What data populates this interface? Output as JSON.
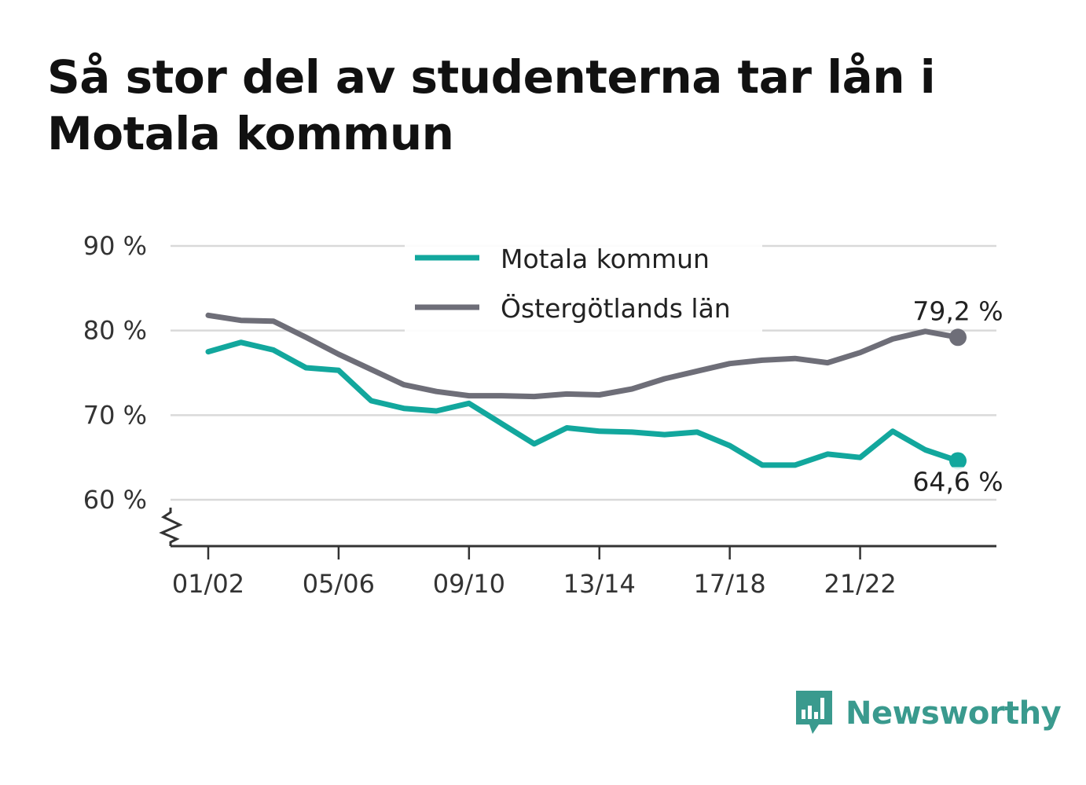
{
  "title": "Så stor del av studenterna tar lån i Motala kommun",
  "colors": {
    "motala": "#12a79d",
    "ostergotland": "#6e6e78",
    "grid": "#d9d9d9",
    "axis": "#333333",
    "brand": "#3a9a8e"
  },
  "brand": {
    "name": "Newsworthy",
    "icon": "bar-chart-speech-bubble-icon"
  },
  "chart_data": {
    "type": "line",
    "title": "Så stor del av studenterna tar lån i Motala kommun",
    "xlabel": "",
    "ylabel": "",
    "x": [
      "01/02",
      "02/03",
      "03/04",
      "04/05",
      "05/06",
      "06/07",
      "07/08",
      "08/09",
      "09/10",
      "10/11",
      "11/12",
      "12/13",
      "13/14",
      "14/15",
      "15/16",
      "16/17",
      "17/18",
      "18/19",
      "19/20",
      "20/21",
      "21/22",
      "22/23",
      "23/24",
      "24/25"
    ],
    "x_tick_labels": [
      "01/02",
      "05/06",
      "09/10",
      "13/14",
      "17/18",
      "21/22"
    ],
    "y_ticks": [
      60,
      70,
      80,
      90
    ],
    "y_tick_labels": [
      "60 %",
      "70 %",
      "80 %",
      "90 %"
    ],
    "ylim": [
      54.5,
      90
    ],
    "axis_break": true,
    "grid": true,
    "legend_position": "top-center",
    "series": [
      {
        "name": "Motala kommun",
        "color": "#12a79d",
        "values": [
          77.5,
          78.6,
          77.7,
          75.6,
          75.3,
          71.7,
          70.8,
          70.5,
          71.4,
          69.0,
          66.6,
          68.5,
          68.1,
          68.0,
          67.7,
          68.0,
          66.4,
          64.1,
          64.1,
          65.4,
          65.0,
          68.1,
          65.9,
          64.6
        ],
        "end_label": "64,6 %"
      },
      {
        "name": "Östergötlands län",
        "color": "#6e6e78",
        "values": [
          81.8,
          81.2,
          81.1,
          79.2,
          77.2,
          75.4,
          73.6,
          72.8,
          72.3,
          72.3,
          72.2,
          72.5,
          72.4,
          73.1,
          74.3,
          75.2,
          76.1,
          76.5,
          76.7,
          76.2,
          77.4,
          79.0,
          79.9,
          79.2
        ],
        "end_label": "79,2 %"
      }
    ]
  }
}
